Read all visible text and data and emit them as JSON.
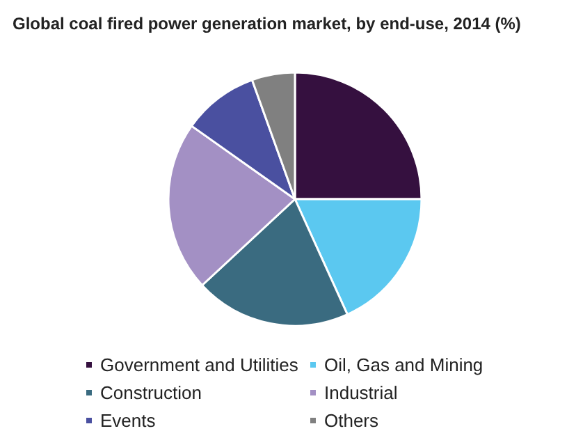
{
  "chart_data": {
    "type": "pie",
    "title": "Global coal fired power generation market, by end-use, 2014 (%)",
    "categories": [
      "Government and Utilities",
      "Oil, Gas and Mining",
      "Construction",
      "Industrial",
      "Events",
      "Others"
    ],
    "values": [
      25,
      18.2,
      19.9,
      21.7,
      9.7,
      5.5
    ],
    "colors": [
      "#35103f",
      "#5bc8f0",
      "#3a6b80",
      "#a390c4",
      "#4a50a0",
      "#808080"
    ],
    "legend": "bottom"
  }
}
